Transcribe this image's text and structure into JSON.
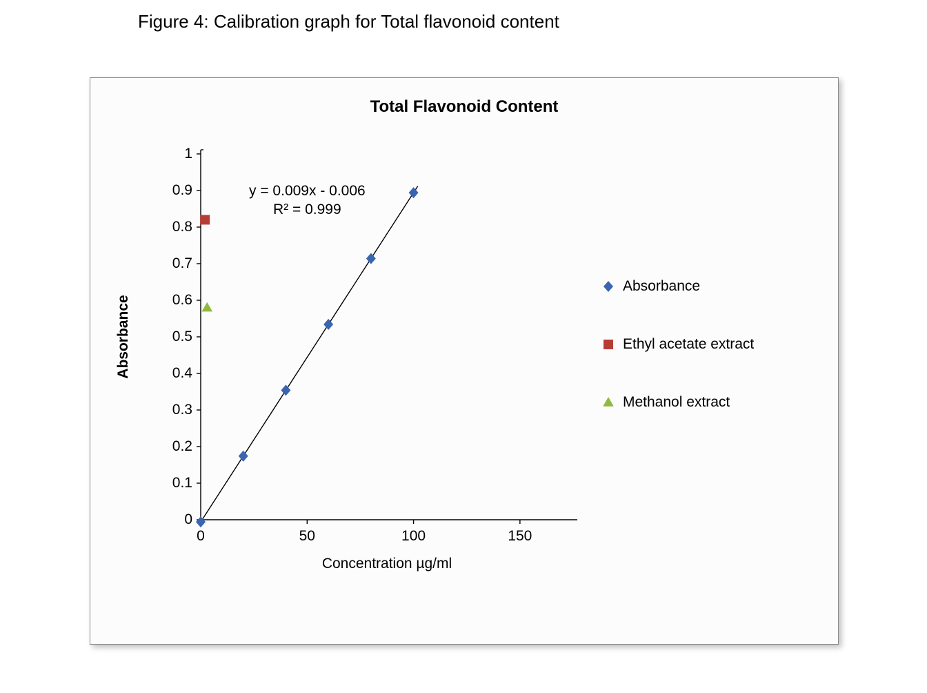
{
  "figure_caption": "Figure 4: Calibration graph for Total flavonoid content",
  "chart": {
    "type": "scatter",
    "title": "Total Flavonoid Content",
    "title_fontsize": 24,
    "title_fontweight": "700",
    "background_color": "#fcfcfc",
    "border_color": "#8c8c8c",
    "shadow_color": "rgba(0,0,0,0.25)",
    "plot": {
      "xlim": [
        0,
        175
      ],
      "ylim": [
        0,
        1.0
      ],
      "x_label": "Concentration µg/ml",
      "y_label": "Absorbance",
      "label_fontsize": 21,
      "ylabel_fontweight": "700",
      "xlabel_fontweight": "400",
      "tick_fontsize": 21,
      "tick_color": "#000000",
      "axis_color": "#000000",
      "axis_width": 1.4,
      "tick_length": 6,
      "x_ticks": [
        0,
        50,
        100,
        150
      ],
      "y_ticks": [
        0,
        0.1,
        0.2,
        0.3,
        0.4,
        0.5,
        0.6,
        0.7,
        0.8,
        0.9,
        1.0
      ],
      "y_ticklabels": [
        "0",
        "0.1",
        "0.2",
        "0.3",
        "0.4",
        "0.5",
        "0.6",
        "0.7",
        "0.8",
        "0.9",
        "1"
      ]
    },
    "series": {
      "absorbance": {
        "name": "Absorbance",
        "marker": "diamond",
        "marker_size": 14,
        "color": "#3a66b0",
        "x": [
          0,
          20,
          40,
          60,
          80,
          100
        ],
        "y": [
          -0.006,
          0.174,
          0.354,
          0.534,
          0.714,
          0.894
        ]
      },
      "ethyl_acetate": {
        "name": "Ethyl acetate extract",
        "marker": "square",
        "marker_size": 14,
        "color": "#b83c36",
        "x": [
          2
        ],
        "y": [
          0.82
        ]
      },
      "methanol": {
        "name": "Methanol extract",
        "marker": "triangle",
        "marker_size": 14,
        "color": "#8fb93f",
        "x": [
          3
        ],
        "y": [
          0.58
        ]
      }
    },
    "trendline": {
      "color": "#000000",
      "width": 1.4,
      "slope": 0.009,
      "intercept": -0.006,
      "x_start": 0,
      "x_end": 102
    },
    "equation_text": "y = 0.009x - 0.006",
    "r2_text": "R² = 0.999",
    "equation_fontsize": 21,
    "legend": {
      "fontsize": 21,
      "items": [
        {
          "key": "absorbance",
          "label": "Absorbance"
        },
        {
          "key": "ethyl_acetate",
          "label": "Ethyl acetate extract"
        },
        {
          "key": "methanol",
          "label": "Methanol extract"
        }
      ]
    }
  }
}
